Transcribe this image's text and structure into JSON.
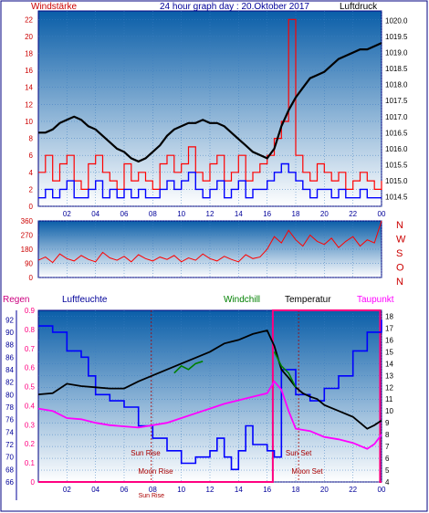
{
  "colors": {
    "frame": "#000080",
    "plot_top": "#0a5ea8",
    "plot_bottom": "#ffffff",
    "wind_avg": "#0000ff",
    "wind_gust": "#ff0000",
    "pressure": "#000000",
    "direction": "#ff0000",
    "temperature": "#000000",
    "dewpoint": "#ff00ff",
    "humidity": "#0000ff",
    "windchill": "#008000",
    "rain": "#ff0080",
    "label_red": "#cc0000",
    "label_blue": "#000099",
    "sun_marker": "#aa0000"
  },
  "chart_data": [
    {
      "type": "line",
      "name": "wind-pressure",
      "title": "24 hour graph day : 20.Oktober 2017",
      "left_label": "Windstärke",
      "right_label": "Luftdruck",
      "x_ticks": [
        "02",
        "04",
        "06",
        "08",
        "10",
        "12",
        "14",
        "16",
        "18",
        "20",
        "22",
        "00"
      ],
      "x_range": [
        0,
        24
      ],
      "y_left_ticks": [
        0,
        2,
        4,
        6,
        8,
        10,
        12,
        14,
        16,
        18,
        20,
        22
      ],
      "y_left_range": [
        0,
        23
      ],
      "y_right_ticks": [
        1014.5,
        1015,
        1015.5,
        1016,
        1016.5,
        1017,
        1017.5,
        1018,
        1018.5,
        1019,
        1019.5,
        1020
      ],
      "y_right_range": [
        1014.2,
        1020.3
      ],
      "pressure": {
        "x": [
          0,
          0.5,
          1,
          1.5,
          2,
          2.5,
          3,
          3.5,
          4,
          4.5,
          5,
          5.5,
          6,
          6.5,
          7,
          7.5,
          8,
          8.5,
          9,
          9.5,
          10,
          10.5,
          11,
          11.5,
          12,
          12.5,
          13,
          13.5,
          14,
          14.5,
          15,
          15.5,
          16,
          16.5,
          17,
          17.5,
          18,
          18.5,
          19,
          19.5,
          20,
          20.5,
          21,
          21.5,
          22,
          22.5,
          23,
          23.5,
          24
        ],
        "y": [
          1016.5,
          1016.5,
          1016.6,
          1016.8,
          1016.9,
          1017.0,
          1016.9,
          1016.7,
          1016.6,
          1016.4,
          1016.2,
          1016.0,
          1015.9,
          1015.7,
          1015.6,
          1015.7,
          1015.9,
          1016.1,
          1016.4,
          1016.6,
          1016.7,
          1016.8,
          1016.8,
          1016.9,
          1016.8,
          1016.8,
          1016.7,
          1016.5,
          1016.3,
          1016.1,
          1015.9,
          1015.8,
          1015.7,
          1016.0,
          1016.7,
          1017.2,
          1017.6,
          1017.9,
          1018.2,
          1018.3,
          1018.4,
          1018.6,
          1018.8,
          1018.9,
          1019.0,
          1019.1,
          1019.1,
          1019.2,
          1019.3
        ]
      },
      "wind_gust": {
        "x": [
          0,
          0.5,
          1,
          1.5,
          2,
          2.5,
          3,
          3.5,
          4,
          4.5,
          5,
          5.5,
          6,
          6.5,
          7,
          7.5,
          8,
          8.5,
          9,
          9.5,
          10,
          10.5,
          11,
          11.5,
          12,
          12.5,
          13,
          13.5,
          14,
          14.5,
          15,
          15.5,
          16,
          16.5,
          17,
          17.5,
          18,
          18.5,
          19,
          19.5,
          20,
          20.5,
          21,
          21.5,
          22,
          22.5,
          23,
          23.5,
          24
        ],
        "y": [
          4,
          6,
          3,
          5,
          6,
          3,
          2,
          5,
          6,
          4,
          3,
          2,
          5,
          3,
          4,
          3,
          2,
          5,
          6,
          4,
          5,
          7,
          4,
          3,
          5,
          6,
          3,
          4,
          6,
          3,
          4,
          5,
          6,
          8,
          10,
          22,
          6,
          4,
          3,
          5,
          4,
          3,
          4,
          2,
          3,
          4,
          3,
          2,
          3
        ]
      },
      "wind_avg": {
        "x": [
          0,
          0.5,
          1,
          1.5,
          2,
          2.5,
          3,
          3.5,
          4,
          4.5,
          5,
          5.5,
          6,
          6.5,
          7,
          7.5,
          8,
          8.5,
          9,
          9.5,
          10,
          10.5,
          11,
          11.5,
          12,
          12.5,
          13,
          13.5,
          14,
          14.5,
          15,
          15.5,
          16,
          16.5,
          17,
          17.5,
          18,
          18.5,
          19,
          19.5,
          20,
          20.5,
          21,
          21.5,
          22,
          22.5,
          23,
          23.5,
          24
        ],
        "y": [
          1,
          2,
          1,
          2,
          3,
          1,
          1,
          2,
          3,
          1,
          2,
          1,
          2,
          1,
          2,
          1,
          1,
          2,
          3,
          2,
          3,
          4,
          2,
          1,
          2,
          3,
          1,
          2,
          3,
          1,
          2,
          2,
          3,
          4,
          5,
          4,
          3,
          2,
          1,
          2,
          2,
          1,
          2,
          1,
          1,
          2,
          1,
          1,
          1
        ]
      }
    },
    {
      "type": "line",
      "name": "wind-direction",
      "right_labels": [
        "N",
        "W",
        "S",
        "O",
        "N"
      ],
      "y_ticks": [
        0,
        90,
        180,
        270,
        360
      ],
      "y_range": [
        0,
        360
      ],
      "x_range": [
        0,
        24
      ],
      "direction": {
        "x": [
          0,
          0.5,
          1,
          1.5,
          2,
          2.5,
          3,
          3.5,
          4,
          4.5,
          5,
          5.5,
          6,
          6.5,
          7,
          7.5,
          8,
          8.5,
          9,
          9.5,
          10,
          10.5,
          11,
          11.5,
          12,
          12.5,
          13,
          13.5,
          14,
          14.5,
          15,
          15.5,
          16,
          16.5,
          17,
          17.5,
          18,
          18.5,
          19,
          19.5,
          20,
          20.5,
          21,
          21.5,
          22,
          22.5,
          23,
          23.5,
          24
        ],
        "y": [
          110,
          130,
          95,
          150,
          120,
          105,
          140,
          115,
          100,
          160,
          125,
          110,
          135,
          100,
          145,
          120,
          105,
          130,
          115,
          140,
          100,
          125,
          110,
          150,
          120,
          105,
          135,
          115,
          100,
          145,
          120,
          130,
          180,
          260,
          220,
          300,
          240,
          200,
          270,
          230,
          210,
          250,
          190,
          230,
          260,
          200,
          240,
          220,
          360
        ]
      }
    },
    {
      "type": "line",
      "name": "temperature-humidity",
      "top_labels": [
        "Regen",
        "Luftfeuchte",
        "Windchill",
        "Temperatur",
        "Taupunkt"
      ],
      "x_ticks": [
        "02",
        "04",
        "06",
        "08",
        "10",
        "12",
        "14",
        "16",
        "18",
        "20",
        "22",
        "00"
      ],
      "x_range": [
        0,
        24
      ],
      "rain_ticks": [
        0,
        0.1,
        0.2,
        0.3,
        0.4,
        0.5,
        0.6,
        0.7,
        0.8,
        0.9
      ],
      "rain_range": [
        0,
        0.9
      ],
      "humidity_ticks": [
        66,
        68,
        70,
        72,
        74,
        76,
        78,
        80,
        82,
        84,
        86,
        88,
        90,
        92
      ],
      "humidity_range": [
        66,
        93.5
      ],
      "temp_ticks": [
        4,
        5,
        6,
        7,
        8,
        9,
        10,
        11,
        12,
        13,
        14,
        15,
        16,
        17,
        18
      ],
      "temp_range": [
        4,
        18.5
      ],
      "annotations": [
        "Sun Rise",
        "Moon Rise",
        "Sun Set",
        "Moon Set"
      ],
      "bottom_marker": "Sun Rise",
      "temperature": {
        "x": [
          0,
          1,
          2,
          3,
          4,
          5,
          6,
          7,
          8,
          9,
          10,
          11,
          12,
          13,
          14,
          15,
          16,
          16.5,
          17,
          17.5,
          18,
          18.5,
          19,
          19.5,
          20,
          21,
          22,
          23,
          23.5,
          24
        ],
        "y": [
          11.4,
          11.5,
          12.3,
          12.1,
          12.0,
          11.9,
          11.9,
          12.5,
          13.0,
          13.5,
          14.0,
          14.5,
          15.0,
          15.7,
          16.0,
          16.5,
          16.8,
          15.5,
          13.5,
          12.8,
          12.0,
          11.5,
          11.2,
          11.0,
          10.5,
          10.0,
          9.5,
          8.5,
          8.8,
          9.2
        ]
      },
      "windchill": {
        "x": [
          9.5,
          10,
          10.5,
          11,
          11.5,
          16.5,
          17,
          17.5,
          18
        ],
        "y": [
          13.2,
          13.8,
          13.5,
          14.0,
          14.2,
          15.0,
          13.8,
          13.2,
          12.0
        ]
      },
      "dewpoint": {
        "x": [
          0,
          1,
          2,
          3,
          4,
          5,
          6,
          7,
          8,
          9,
          10,
          11,
          12,
          13,
          14,
          15,
          16,
          16.5,
          17,
          17.5,
          18,
          19,
          20,
          21,
          22,
          23,
          23.5,
          24
        ],
        "y": [
          10.2,
          10.0,
          9.4,
          9.3,
          9.0,
          8.8,
          8.7,
          8.6,
          8.8,
          9.0,
          9.4,
          9.8,
          10.2,
          10.6,
          10.9,
          11.2,
          11.5,
          12.5,
          11.8,
          10.0,
          8.5,
          8.3,
          7.8,
          7.6,
          7.3,
          6.8,
          7.2,
          8.0
        ]
      },
      "humidity": {
        "x": [
          0,
          1,
          2,
          3,
          3.5,
          4,
          5,
          6,
          7,
          8,
          9,
          10,
          11,
          12,
          12.5,
          13,
          13.5,
          14,
          14.5,
          15,
          16,
          16.5,
          17,
          17.5,
          18,
          19,
          20,
          21,
          22,
          23,
          24
        ],
        "y": [
          91,
          90,
          87,
          86,
          83,
          80,
          79,
          78,
          75,
          73,
          71,
          69,
          70,
          71,
          73,
          70,
          68,
          71,
          75,
          72,
          71,
          70,
          84,
          84,
          80,
          79,
          81,
          83,
          87,
          90,
          92
        ]
      },
      "rain": {
        "x": [
          0,
          16.4,
          16.4,
          23.9,
          23.9,
          24
        ],
        "y": [
          0,
          0,
          0.9,
          0.9,
          0.0,
          0.0
        ]
      }
    }
  ]
}
